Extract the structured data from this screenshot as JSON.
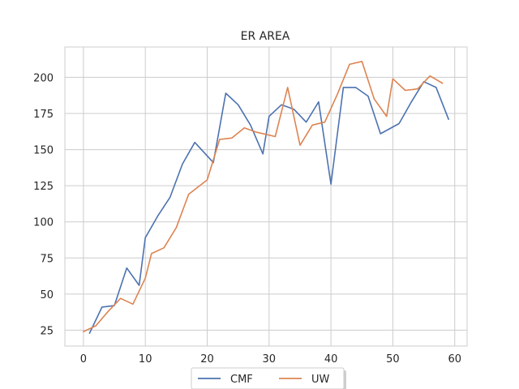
{
  "chart_data": {
    "type": "line",
    "title": "ER AREA",
    "xlabel": "",
    "ylabel": "",
    "xlim": [
      -3,
      62
    ],
    "ylim": [
      14,
      221
    ],
    "xticks": [
      0,
      10,
      20,
      30,
      40,
      50,
      60
    ],
    "yticks": [
      25,
      50,
      75,
      100,
      125,
      150,
      175,
      200
    ],
    "grid": true,
    "legend": "bottom-center",
    "series": [
      {
        "name": "CMF",
        "color": "#4c72b0",
        "x": [
          1,
          3,
          5,
          7,
          9,
          10,
          12,
          14,
          16,
          18,
          21,
          23,
          25,
          27,
          29,
          30,
          32,
          34,
          36,
          38,
          40,
          42,
          44,
          46,
          48,
          51,
          53,
          55,
          57,
          59
        ],
        "y": [
          23,
          41,
          42,
          68,
          56,
          89,
          104,
          117,
          140,
          155,
          141,
          189,
          181,
          167,
          147,
          173,
          181,
          178,
          169,
          183,
          126,
          193,
          193,
          187,
          161,
          168,
          183,
          197,
          193,
          171
        ]
      },
      {
        "name": "UW",
        "color": "#dd8452",
        "x": [
          0,
          2,
          4,
          6,
          8,
          10,
          11,
          13,
          15,
          17,
          20,
          22,
          24,
          26,
          28,
          30,
          31,
          33,
          35,
          37,
          39,
          41,
          43,
          45,
          47,
          49,
          50,
          52,
          54,
          56,
          58
        ],
        "y": [
          24,
          28,
          38,
          47,
          43,
          61,
          78,
          82,
          96,
          119,
          129,
          157,
          158,
          165,
          162,
          160,
          159,
          193,
          153,
          167,
          169,
          188,
          209,
          211,
          185,
          173,
          199,
          191,
          192,
          201,
          196
        ]
      }
    ]
  }
}
